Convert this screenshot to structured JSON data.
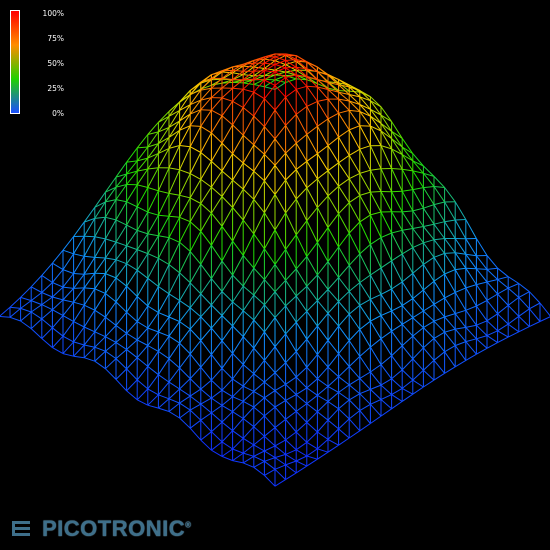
{
  "legend": {
    "ticks": [
      "100%",
      "75%",
      "50%",
      "25%",
      "0%"
    ],
    "gradient": [
      "#ff0000",
      "#ff8c00",
      "#20d000",
      "#1a4dff"
    ]
  },
  "logo": {
    "text": "PICOTRONIC",
    "mark": "®",
    "color": "#3e6f8a"
  },
  "surface": {
    "description_type": "3d-wireframe-intensity",
    "colormap": [
      "#1030ff",
      "#10b0ff",
      "#20e000",
      "#ffd000",
      "#ff0000"
    ]
  }
}
